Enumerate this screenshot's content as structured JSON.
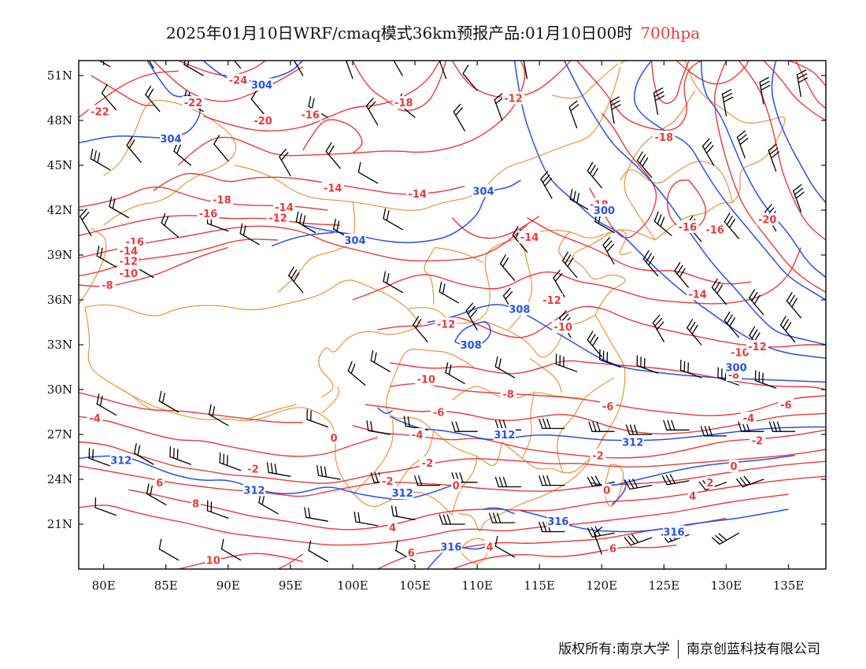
{
  "header": {
    "title_main": "2025年01月10日WRF/cmaq模式36km预报产品:01月10日00时",
    "title_level": "700hpa"
  },
  "colors": {
    "temperature": "#e83a3a",
    "height": "#2850e8",
    "border": "#e8943a",
    "wind": "#000000",
    "level_text": "#e83a3a"
  },
  "axes": {
    "lat_labels": [
      "51N",
      "48N",
      "45N",
      "42N",
      "39N",
      "36N",
      "33N",
      "30N",
      "27N",
      "24N",
      "21N"
    ],
    "lon_labels": [
      "80E",
      "85E",
      "90E",
      "95E",
      "100E",
      "105E",
      "110E",
      "115E",
      "120E",
      "125E",
      "130E",
      "135E"
    ]
  },
  "temperature_labels": [
    {
      "text": "-22",
      "lon": 79.7,
      "lat": 48.6
    },
    {
      "text": "-24",
      "lon": 90.8,
      "lat": 50.7
    },
    {
      "text": "-22",
      "lon": 87.2,
      "lat": 49.2
    },
    {
      "text": "-20",
      "lon": 92.8,
      "lat": 48.0
    },
    {
      "text": "-16",
      "lon": 96.6,
      "lat": 48.4
    },
    {
      "text": "-18",
      "lon": 104.1,
      "lat": 49.2
    },
    {
      "text": "-12",
      "lon": 112.9,
      "lat": 49.5
    },
    {
      "text": "-18",
      "lon": 125.0,
      "lat": 46.9
    },
    {
      "text": "-14",
      "lon": 98.4,
      "lat": 43.5
    },
    {
      "text": "-14",
      "lon": 105.2,
      "lat": 43.1
    },
    {
      "text": "-18",
      "lon": 89.5,
      "lat": 42.7
    },
    {
      "text": "-14",
      "lon": 94.5,
      "lat": 42.2
    },
    {
      "text": "-16",
      "lon": 88.4,
      "lat": 41.8
    },
    {
      "text": "-12",
      "lon": 94.0,
      "lat": 41.5
    },
    {
      "text": "-16",
      "lon": 82.5,
      "lat": 39.9
    },
    {
      "text": "-14",
      "lon": 82.0,
      "lat": 39.3
    },
    {
      "text": "-12",
      "lon": 82.0,
      "lat": 38.6
    },
    {
      "text": "-10",
      "lon": 82.0,
      "lat": 37.8
    },
    {
      "text": "-8",
      "lon": 80.3,
      "lat": 37.0
    },
    {
      "text": "-14",
      "lon": 114.2,
      "lat": 40.2
    },
    {
      "text": "-18",
      "lon": 119.8,
      "lat": 42.4
    },
    {
      "text": "-16",
      "lon": 126.9,
      "lat": 40.9
    },
    {
      "text": "-16",
      "lon": 129.1,
      "lat": 40.7
    },
    {
      "text": "-20",
      "lon": 133.3,
      "lat": 41.4
    },
    {
      "text": "-14",
      "lon": 127.7,
      "lat": 36.4
    },
    {
      "text": "-12",
      "lon": 116.0,
      "lat": 36.0
    },
    {
      "text": "-10",
      "lon": 116.9,
      "lat": 34.2
    },
    {
      "text": "-12",
      "lon": 107.5,
      "lat": 34.4
    },
    {
      "text": "-10",
      "lon": 105.9,
      "lat": 30.7
    },
    {
      "text": "-10",
      "lon": 131.1,
      "lat": 32.5
    },
    {
      "text": "-12",
      "lon": 132.5,
      "lat": 32.9
    },
    {
      "text": "-8",
      "lon": 130.6,
      "lat": 31.0
    },
    {
      "text": "-8",
      "lon": 112.5,
      "lat": 29.7
    },
    {
      "text": "-6",
      "lon": 120.5,
      "lat": 28.9
    },
    {
      "text": "-6",
      "lon": 134.8,
      "lat": 29.0
    },
    {
      "text": "-4",
      "lon": 131.8,
      "lat": 28.1
    },
    {
      "text": "-6",
      "lon": 106.9,
      "lat": 28.5
    },
    {
      "text": "-4",
      "lon": 79.3,
      "lat": 28.1
    },
    {
      "text": "-4",
      "lon": 105.2,
      "lat": 27.0
    },
    {
      "text": "-2",
      "lon": 132.5,
      "lat": 26.6
    },
    {
      "text": "0",
      "lon": 98.5,
      "lat": 26.8
    },
    {
      "text": "-2",
      "lon": 106.0,
      "lat": 25.1
    },
    {
      "text": "-2",
      "lon": 119.7,
      "lat": 25.6
    },
    {
      "text": "-2",
      "lon": 92.0,
      "lat": 24.7
    },
    {
      "text": "0",
      "lon": 130.6,
      "lat": 24.9
    },
    {
      "text": "-2",
      "lon": 102.8,
      "lat": 23.9
    },
    {
      "text": "0",
      "lon": 108.3,
      "lat": 23.6
    },
    {
      "text": "0",
      "lon": 120.4,
      "lat": 23.3
    },
    {
      "text": "2",
      "lon": 128.7,
      "lat": 23.8
    },
    {
      "text": "4",
      "lon": 127.3,
      "lat": 22.9
    },
    {
      "text": "6",
      "lon": 84.5,
      "lat": 23.8
    },
    {
      "text": "8",
      "lon": 87.4,
      "lat": 22.4
    },
    {
      "text": "4",
      "lon": 103.2,
      "lat": 20.8
    },
    {
      "text": "6",
      "lon": 104.7,
      "lat": 19.1
    },
    {
      "text": "4",
      "lon": 111.0,
      "lat": 19.5
    },
    {
      "text": "6",
      "lon": 120.9,
      "lat": 19.4
    },
    {
      "text": "10",
      "lon": 88.8,
      "lat": 18.6
    }
  ],
  "height_labels": [
    {
      "text": "304",
      "lon": 92.7,
      "lat": 50.4
    },
    {
      "text": "304",
      "lon": 85.4,
      "lat": 46.8
    },
    {
      "text": "304",
      "lon": 110.5,
      "lat": 43.3
    },
    {
      "text": "304",
      "lon": 100.2,
      "lat": 40.0
    },
    {
      "text": "300",
      "lon": 120.2,
      "lat": 42.0
    },
    {
      "text": "308",
      "lon": 113.4,
      "lat": 35.4
    },
    {
      "text": "308",
      "lon": 109.5,
      "lat": 33.0
    },
    {
      "text": "300",
      "lon": 130.8,
      "lat": 31.5
    },
    {
      "text": "312",
      "lon": 81.4,
      "lat": 25.3
    },
    {
      "text": "312",
      "lon": 112.2,
      "lat": 27.0
    },
    {
      "text": "312",
      "lon": 122.5,
      "lat": 26.5
    },
    {
      "text": "312",
      "lon": 92.1,
      "lat": 23.3
    },
    {
      "text": "312",
      "lon": 104.0,
      "lat": 23.1
    },
    {
      "text": "316",
      "lon": 116.5,
      "lat": 21.2
    },
    {
      "text": "316",
      "lon": 125.8,
      "lat": 20.5
    },
    {
      "text": "316",
      "lon": 107.9,
      "lat": 19.5
    }
  ],
  "footer": {
    "left": "版权所有:南京大学",
    "right": "南京创蓝科技有限公司"
  }
}
